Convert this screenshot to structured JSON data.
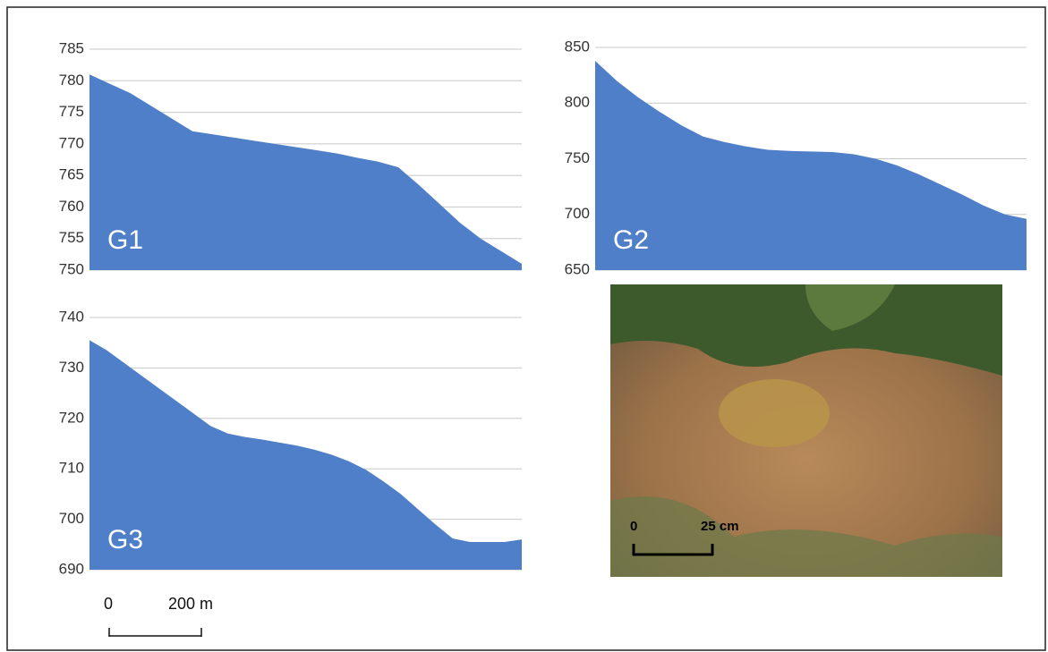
{
  "chart_data": [
    {
      "type": "area",
      "label": "G1",
      "color": "#4f7fc8",
      "ylim": [
        750,
        785
      ],
      "yticks": [
        750,
        755,
        760,
        765,
        770,
        775,
        780,
        785
      ],
      "grid": true,
      "values": [
        781,
        779.5,
        778,
        776,
        774,
        772,
        771.5,
        771,
        770.5,
        770,
        769.5,
        769,
        768.5,
        767.8,
        767.2,
        766.3,
        763.5,
        760.5,
        757.5,
        755,
        753,
        751
      ]
    },
    {
      "type": "area",
      "label": "G2",
      "color": "#4f7fc8",
      "ylim": [
        650,
        850
      ],
      "yticks": [
        650,
        700,
        750,
        800,
        850
      ],
      "grid": true,
      "values": [
        838,
        820,
        805,
        792,
        780,
        770,
        765,
        761,
        758,
        757,
        756.5,
        756,
        754,
        750,
        744,
        736,
        727,
        718,
        708,
        700,
        696
      ]
    },
    {
      "type": "area",
      "label": "G3",
      "color": "#4f7fc8",
      "ylim": [
        690,
        740
      ],
      "yticks": [
        690,
        700,
        710,
        720,
        730,
        740
      ],
      "grid": true,
      "values": [
        735.5,
        733.5,
        731,
        728.5,
        726,
        723.5,
        721,
        718.5,
        717,
        716.3,
        715.8,
        715.2,
        714.6,
        713.8,
        712.8,
        711.5,
        709.8,
        707.5,
        705,
        702,
        699,
        696.2,
        695.5,
        695.5,
        695.5,
        696
      ]
    }
  ],
  "scale_bar": {
    "start": "0",
    "end": "200 m"
  },
  "photo_scale_bar": {
    "start": "0",
    "end": "25 cm"
  }
}
